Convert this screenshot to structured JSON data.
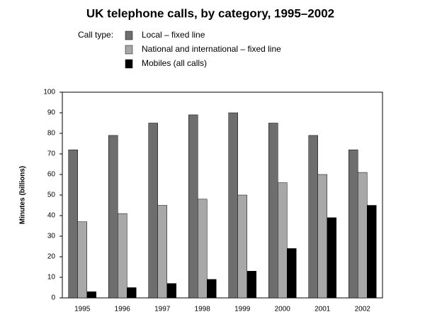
{
  "chart_data": {
    "type": "bar",
    "title": "UK telephone calls, by category, 1995–2002",
    "legend_title": "Call type:",
    "y_label": "Minutes (billions)",
    "categories": [
      "1995",
      "1996",
      "1997",
      "1998",
      "1999",
      "2000",
      "2001",
      "2002"
    ],
    "series": [
      {
        "name": "Local – fixed line",
        "color": "#6e6e6e",
        "values": [
          72,
          79,
          85,
          89,
          90,
          85,
          79,
          72
        ]
      },
      {
        "name": "National and international – fixed line",
        "color": "#a8a8a8",
        "values": [
          37,
          41,
          45,
          48,
          50,
          56,
          60,
          61
        ]
      },
      {
        "name": "Mobiles (all calls)",
        "color": "#000000",
        "values": [
          3,
          5,
          7,
          9,
          13,
          24,
          39,
          45
        ]
      }
    ],
    "ylim": [
      0,
      100
    ],
    "yticks": [
      0,
      10,
      20,
      30,
      40,
      50,
      60,
      70,
      80,
      90,
      100
    ],
    "grid": false
  }
}
